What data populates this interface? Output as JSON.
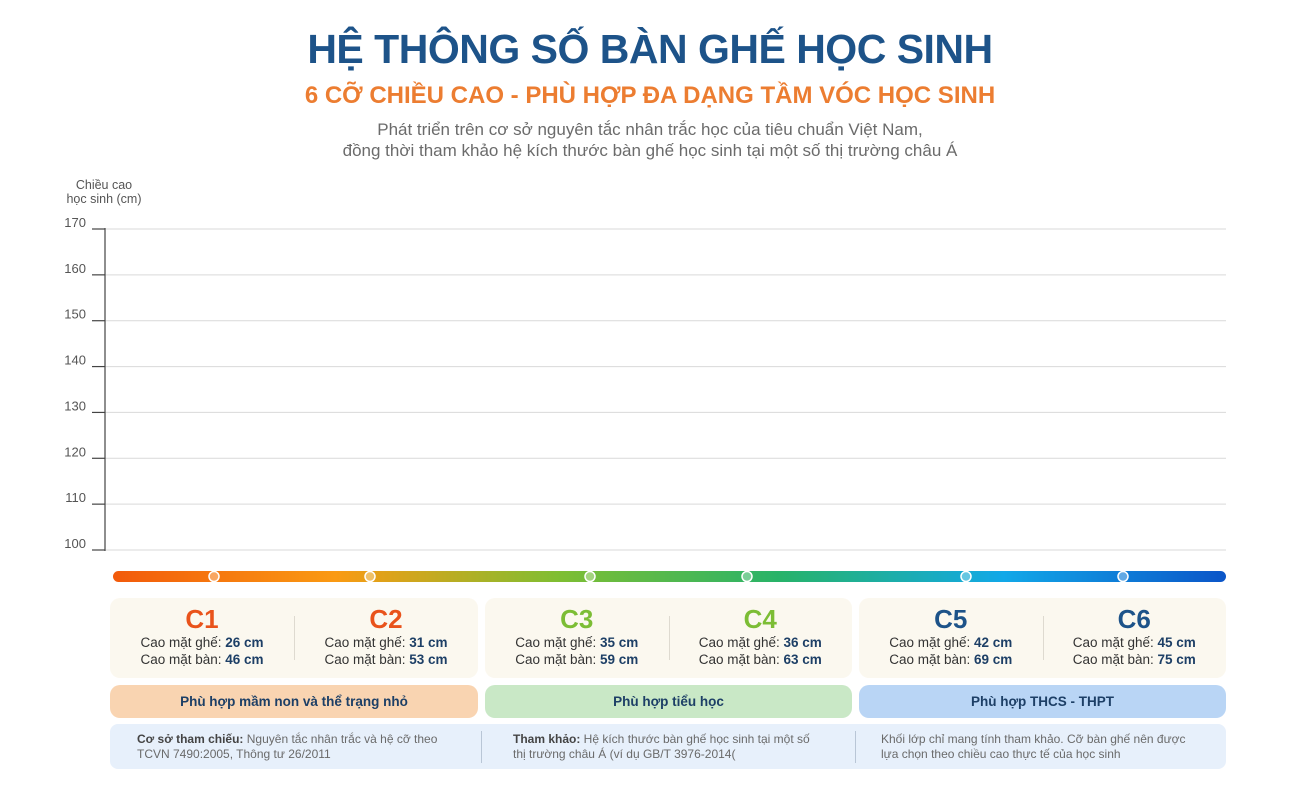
{
  "header": {
    "title": "HỆ THÔNG SỐ BÀN GHẾ HỌC SINH",
    "subtitle": "6 CỠ CHIỀU CAO - PHÙ HỢP ĐA DẠNG TẦM VÓC HỌC SINH",
    "description": [
      "Phát triển trên cơ sở nguyên tắc nhân trắc học của tiêu chuẩn Việt Nam,",
      "đồng thời tham khảo hệ kích thước bàn ghế học sinh tại một số thị trường châu Á"
    ]
  },
  "chart_data": {
    "type": "bar",
    "ylabel": [
      "Chiều cao",
      "học sinh (cm)"
    ],
    "ylim": [
      100,
      170
    ],
    "yticks": [
      100,
      110,
      120,
      130,
      140,
      150,
      160,
      170
    ],
    "grid": true,
    "categories": [
      "C1",
      "C2",
      "C3",
      "C4",
      "C5",
      "C6"
    ],
    "series": [],
    "gradient_colors": [
      "#f25a0b",
      "#fa9a13",
      "#7fbe32",
      "#27b36a",
      "#12a8e8",
      "#0b55c8"
    ]
  },
  "sizes": [
    {
      "code": "C1",
      "color": "#e9531b",
      "seat_label": "Cao mặt ghế: ",
      "seat": "26 cm",
      "desk_label": "Cao mặt bàn: ",
      "desk": "46 cm"
    },
    {
      "code": "C2",
      "color": "#e9531b",
      "seat_label": "Cao mặt ghế: ",
      "seat": "31 cm",
      "desk_label": "Cao mặt bàn: ",
      "desk": "53 cm"
    },
    {
      "code": "C3",
      "color": "#7cbd35",
      "seat_label": "Cao mặt ghế: ",
      "seat": "35 cm",
      "desk_label": "Cao mặt bàn: ",
      "desk": "59 cm"
    },
    {
      "code": "C4",
      "color": "#7cbd35",
      "seat_label": "Cao mặt ghế: ",
      "seat": "36 cm",
      "desk_label": "Cao mặt bàn: ",
      "desk": "63 cm"
    },
    {
      "code": "C5",
      "color": "#1d5389",
      "seat_label": "Cao mặt ghế: ",
      "seat": "42 cm",
      "desk_label": "Cao mặt bàn: ",
      "desk": "69 cm"
    },
    {
      "code": "C6",
      "color": "#1d5389",
      "seat_label": "Cao mặt ghế: ",
      "seat": "45 cm",
      "desk_label": "Cao mặt bàn: ",
      "desk": "75 cm"
    }
  ],
  "bands": [
    {
      "label": "Phù hợp mầm non và thể trạng nhỏ",
      "color": "#f9d4b1"
    },
    {
      "label": "Phù hợp tiểu học",
      "color": "#c9e8c6"
    },
    {
      "label": "Phù hợp THCS - THPT",
      "color": "#b9d5f5"
    }
  ],
  "notes": [
    {
      "bold": "Cơ sở tham chiếu:",
      "text": " Nguyên tắc nhân trắc và hệ cỡ theo",
      "line2": "TCVN 7490:2005, Thông tư 26/2011"
    },
    {
      "bold": "Tham khảo:",
      "text": " Hệ kích thước bàn ghế học sinh tại một số",
      "line2": "thị trường châu Á (ví dụ GB/T 3976-2014("
    },
    {
      "bold": "",
      "text": "Khối lớp chỉ mang tính tham khảo. Cỡ bàn ghế nên được",
      "line2": "lựa chọn theo chiều cao thực tế của học sinh"
    }
  ]
}
